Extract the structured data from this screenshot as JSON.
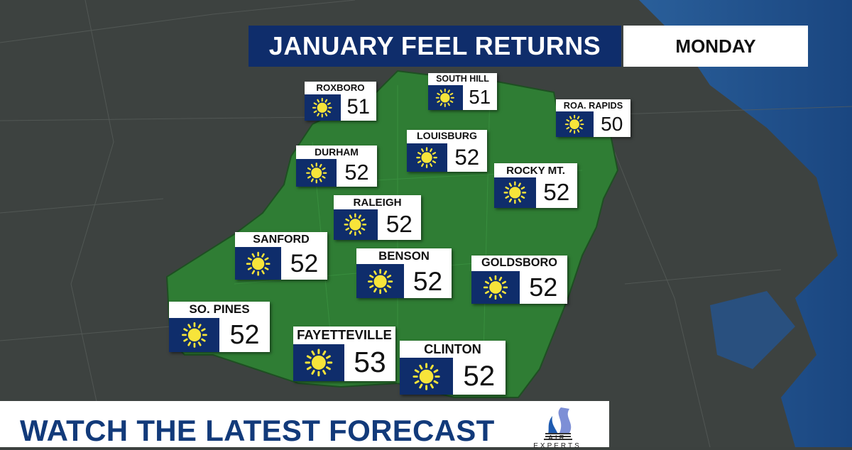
{
  "header": {
    "title": "JANUARY FEEL RETURNS",
    "day": "MONDAY"
  },
  "colors": {
    "title_bg": "#0f2d6b",
    "region": "#2f7d34",
    "land": "#3c413f",
    "water": "#1f4f8a",
    "sun": "#f7e43a",
    "banner_text": "#123a7a"
  },
  "cities": [
    {
      "name": "ROXBORO",
      "temp": "51",
      "icon": "sun-icon"
    },
    {
      "name": "SOUTH HILL",
      "temp": "51",
      "icon": "sun-icon"
    },
    {
      "name": "ROA. RAPIDS",
      "temp": "50",
      "icon": "sun-icon"
    },
    {
      "name": "LOUISBURG",
      "temp": "52",
      "icon": "sun-icon"
    },
    {
      "name": "DURHAM",
      "temp": "52",
      "icon": "sun-icon"
    },
    {
      "name": "ROCKY MT.",
      "temp": "52",
      "icon": "sun-icon"
    },
    {
      "name": "RALEIGH",
      "temp": "52",
      "icon": "sun-icon"
    },
    {
      "name": "SANFORD",
      "temp": "52",
      "icon": "sun-icon"
    },
    {
      "name": "BENSON",
      "temp": "52",
      "icon": "sun-icon"
    },
    {
      "name": "GOLDSBORO",
      "temp": "52",
      "icon": "sun-icon"
    },
    {
      "name": "SO. PINES",
      "temp": "52",
      "icon": "sun-icon"
    },
    {
      "name": "FAYETTEVILLE",
      "temp": "53",
      "icon": "sun-icon"
    },
    {
      "name": "CLINTON",
      "temp": "52",
      "icon": "sun-icon"
    }
  ],
  "banner": {
    "text": "WATCH THE LATEST FORECAST",
    "logo": "AIR EXPERTS"
  }
}
